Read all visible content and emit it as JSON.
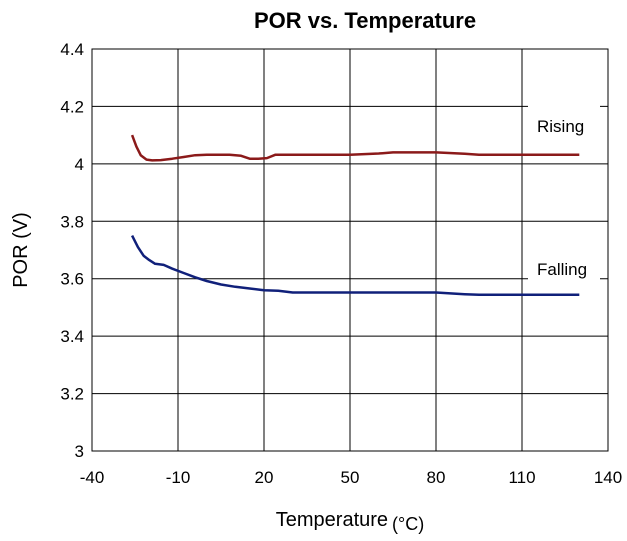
{
  "chart_data": {
    "type": "line",
    "title": "POR vs. Temperature",
    "xlabel": "Temperature",
    "xlabel_unit": "(°C)",
    "ylabel": "POR (V)",
    "xlim": [
      -40,
      140
    ],
    "ylim": [
      3,
      4.4
    ],
    "x_ticks": [
      -40,
      -10,
      20,
      50,
      80,
      110,
      140
    ],
    "x_tick_labels": [
      "-40",
      "-10",
      "20",
      "50",
      "80",
      "110",
      "140"
    ],
    "y_ticks": [
      3,
      3.2,
      3.4,
      3.6,
      3.8,
      4,
      4.2,
      4.4
    ],
    "y_tick_labels": [
      "3",
      "3.2",
      "3.4",
      "3.6",
      "3.8",
      "4",
      "4.2",
      "4.4"
    ],
    "grid": true,
    "legend": "none",
    "annotations": [
      "Rising",
      "Falling"
    ],
    "series": [
      {
        "name": "Rising",
        "color": "#8b1a1a",
        "x": [
          -26,
          -24.5,
          -23,
          -21,
          -19,
          -16,
          -12,
          -8,
          -4,
          0,
          4,
          8,
          12,
          15,
          18,
          21,
          24,
          30,
          40,
          50,
          60,
          65,
          70,
          80,
          90,
          95,
          100,
          110,
          120,
          130
        ],
        "y": [
          4.1,
          4.06,
          4.03,
          4.015,
          4.012,
          4.013,
          4.018,
          4.024,
          4.03,
          4.032,
          4.032,
          4.032,
          4.028,
          4.018,
          4.018,
          4.02,
          4.032,
          4.032,
          4.032,
          4.032,
          4.036,
          4.04,
          4.04,
          4.04,
          4.035,
          4.032,
          4.032,
          4.032,
          4.032,
          4.032
        ]
      },
      {
        "name": "Falling",
        "color": "#10207a",
        "x": [
          -26,
          -24,
          -22,
          -20,
          -18,
          -15,
          -12,
          -8,
          -4,
          0,
          5,
          10,
          15,
          20,
          25,
          30,
          40,
          50,
          60,
          70,
          80,
          90,
          95,
          100,
          110,
          120,
          130
        ],
        "y": [
          3.75,
          3.71,
          3.68,
          3.665,
          3.652,
          3.648,
          3.635,
          3.62,
          3.605,
          3.592,
          3.58,
          3.572,
          3.566,
          3.56,
          3.558,
          3.552,
          3.552,
          3.552,
          3.552,
          3.552,
          3.552,
          3.546,
          3.544,
          3.544,
          3.544,
          3.544,
          3.544
        ]
      }
    ]
  }
}
